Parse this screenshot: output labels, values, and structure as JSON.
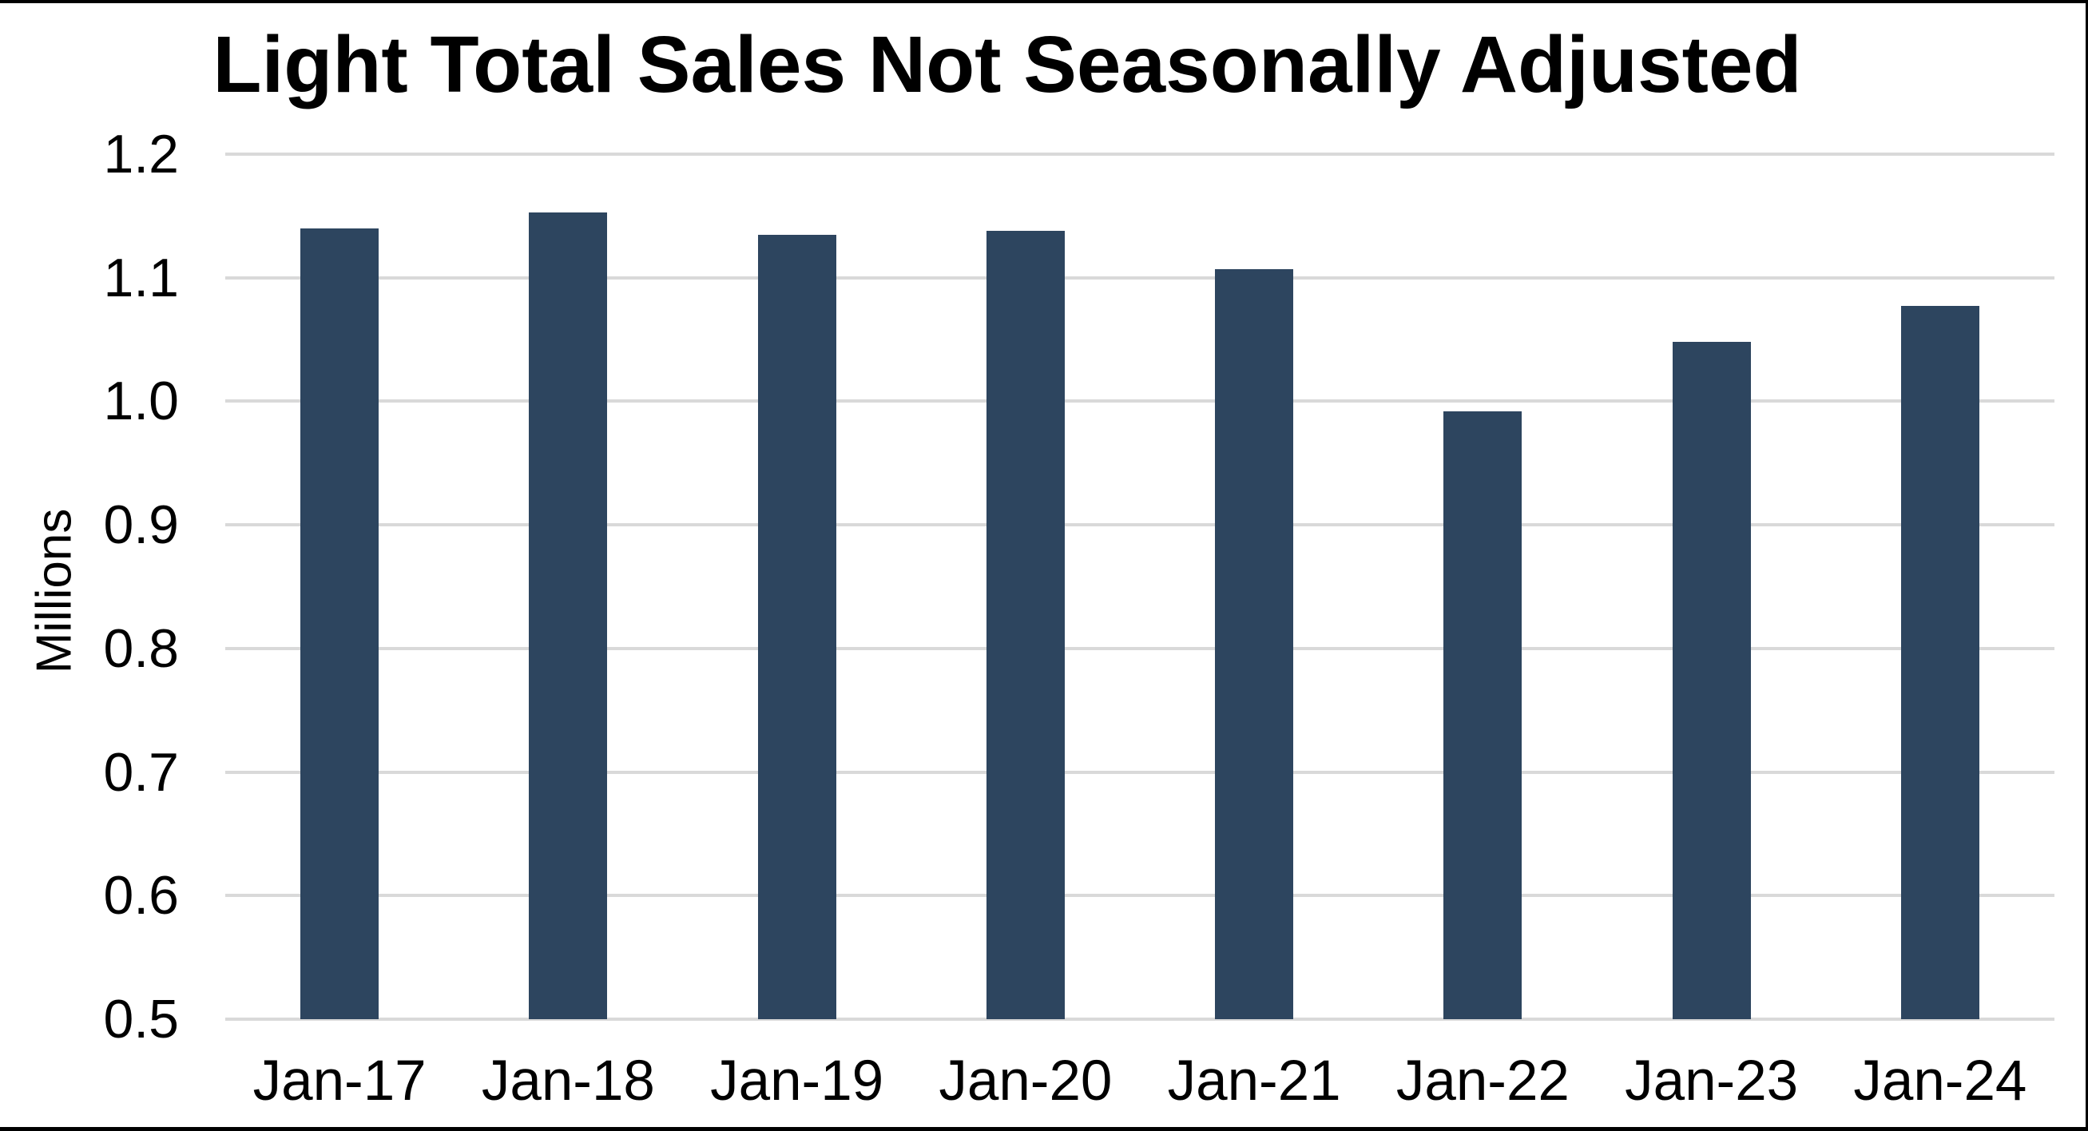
{
  "chart_data": {
    "type": "bar",
    "title": "Light Total Sales Not Seasonally Adjusted",
    "xlabel": "",
    "ylabel": "Millions",
    "categories": [
      "Jan-17",
      "Jan-18",
      "Jan-19",
      "Jan-20",
      "Jan-21",
      "Jan-22",
      "Jan-23",
      "Jan-24"
    ],
    "values": [
      1.14,
      1.153,
      1.135,
      1.138,
      1.107,
      0.992,
      1.048,
      1.077
    ],
    "ylim": [
      0.5,
      1.2
    ],
    "y_tick_labels": [
      "1.2",
      "1.1",
      "1.0",
      "0.9",
      "0.8",
      "0.7",
      "0.6",
      "0.5"
    ],
    "y_tick_values": [
      1.2,
      1.1,
      1.0,
      0.9,
      0.8,
      0.7,
      0.6,
      0.5
    ],
    "grid": "horizontal",
    "legend": "none",
    "colors": {
      "bar_fill": "#2d455f",
      "gridline": "#d9d9d9",
      "text": "#000000",
      "frame": "#000000",
      "background": "#ffffff"
    }
  }
}
